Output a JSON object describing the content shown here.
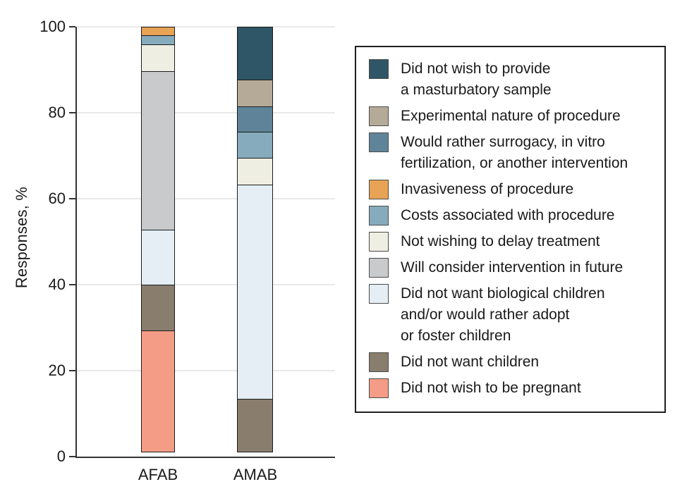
{
  "chart_data": {
    "type": "bar",
    "stacked": true,
    "title": "",
    "xlabel": "",
    "ylabel": "Responses, %",
    "ylim": [
      0,
      100
    ],
    "yticks": [
      0,
      20,
      40,
      60,
      80,
      100
    ],
    "grid": "horizontal",
    "legend_position": "right",
    "categories": [
      "AFAB",
      "AMAB"
    ],
    "series": [
      {
        "name": "Did not wish to provide a masturbatory sample",
        "legend_label": "Did not wish to provide\na masturbatory sample",
        "color": "#2e5667",
        "values": [
          0,
          12.5
        ]
      },
      {
        "name": "Experimental nature of procedure",
        "legend_label": "Experimental nature of procedure",
        "color": "#b4aa97",
        "values": [
          0,
          6.3
        ]
      },
      {
        "name": "Would rather surrogacy, in vitro fertilization, or another intervention",
        "legend_label": "Would rather surrogacy, in vitro\nfertilization, or another intervention",
        "color": "#5f8499",
        "values": [
          0,
          6.2
        ]
      },
      {
        "name": "Invasiveness of procedure",
        "legend_label": "Invasiveness of procedure",
        "color": "#e8a354",
        "values": [
          2.2,
          0
        ]
      },
      {
        "name": "Costs associated with procedure",
        "legend_label": "Costs associated with procedure",
        "color": "#86abbd",
        "values": [
          2.2,
          6.2
        ]
      },
      {
        "name": "Not wishing to delay treatment",
        "legend_label": "Not wishing to delay treatment",
        "color": "#efeee2",
        "values": [
          6.5,
          6.3
        ]
      },
      {
        "name": "Will consider intervention in future",
        "legend_label": "Will consider intervention in future",
        "color": "#c8cacc",
        "values": [
          36.9,
          0
        ]
      },
      {
        "name": "Did not want biological children and/or would rather adopt or foster children",
        "legend_label": "Did not want biological children\nand/or would rather adopt\nor foster children",
        "color": "#e4eef4",
        "values": [
          13.0,
          50.0
        ]
      },
      {
        "name": "Did not want children",
        "legend_label": "Did not want children",
        "color": "#897d6e",
        "values": [
          10.9,
          12.5
        ]
      },
      {
        "name": "Did not wish to be pregnant",
        "legend_label": "Did not wish to be pregnant",
        "color": "#f49c85",
        "values": [
          28.3,
          0
        ]
      }
    ]
  },
  "colors": {
    "axis": "#333333",
    "gridline": "#e9e9e9",
    "segment_border": "#1c1c1c",
    "legend_border": "#1f1f1f",
    "text": "#1a1a1a"
  }
}
